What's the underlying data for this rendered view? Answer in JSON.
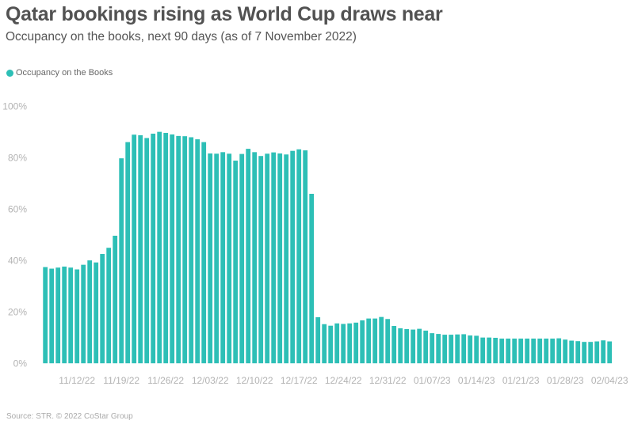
{
  "title": "Qatar bookings rising as World Cup draws near",
  "subtitle": "Occupancy on the books, next 90 days (as of 7 November 2022)",
  "source": "Source: STR. © 2022 CoStar Group",
  "colors": {
    "bar": "#2dbfb6",
    "text": "#525252",
    "axis_text": "#b3b3b3"
  },
  "chart_data": {
    "type": "bar",
    "title": "Qatar bookings rising as World Cup draws near",
    "subtitle": "Occupancy on the books, next 90 days (as of 7 November 2022)",
    "xlabel": "",
    "ylabel": "",
    "ylim": [
      0,
      100
    ],
    "grid": false,
    "legend_position": "top-left",
    "y_ticks": [
      {
        "value": 0,
        "label": "0%"
      },
      {
        "value": 20,
        "label": "20%"
      },
      {
        "value": 40,
        "label": "40%"
      },
      {
        "value": 60,
        "label": "60%"
      },
      {
        "value": 80,
        "label": "80%"
      },
      {
        "value": 100,
        "label": "100%"
      }
    ],
    "x_ticks": [
      {
        "index": 5,
        "label": "11/12/22"
      },
      {
        "index": 12,
        "label": "11/19/22"
      },
      {
        "index": 19,
        "label": "11/26/22"
      },
      {
        "index": 26,
        "label": "12/03/22"
      },
      {
        "index": 33,
        "label": "12/10/22"
      },
      {
        "index": 40,
        "label": "12/17/22"
      },
      {
        "index": 47,
        "label": "12/24/22"
      },
      {
        "index": 54,
        "label": "12/31/22"
      },
      {
        "index": 61,
        "label": "01/07/23"
      },
      {
        "index": 68,
        "label": "01/14/23"
      },
      {
        "index": 75,
        "label": "01/21/23"
      },
      {
        "index": 82,
        "label": "01/28/23"
      },
      {
        "index": 89,
        "label": "02/04/23"
      }
    ],
    "series": [
      {
        "name": "Occupancy on the Books",
        "values": [
          37.6,
          37.0,
          37.4,
          37.8,
          37.4,
          36.7,
          38.5,
          40.2,
          39.4,
          42.7,
          45.1,
          49.8,
          79.9,
          86.2,
          89.1,
          88.9,
          87.8,
          89.5,
          90.2,
          89.8,
          89.2,
          88.6,
          88.5,
          88.1,
          87.3,
          86.2,
          81.8,
          81.7,
          82.3,
          81.7,
          79.0,
          81.6,
          83.6,
          82.3,
          80.8,
          81.7,
          82.2,
          81.8,
          81.4,
          82.8,
          83.4,
          83.0,
          66.1,
          18.1,
          15.4,
          14.8,
          15.7,
          15.5,
          15.7,
          16.0,
          16.9,
          17.6,
          17.6,
          18.2,
          17.4,
          14.7,
          13.8,
          13.5,
          13.3,
          13.6,
          12.9,
          11.9,
          11.6,
          11.3,
          11.3,
          11.4,
          11.5,
          11.0,
          10.9,
          10.2,
          10.2,
          10.1,
          9.8,
          9.8,
          9.8,
          9.8,
          9.8,
          9.8,
          9.8,
          9.8,
          9.8,
          9.9,
          9.4,
          9.0,
          8.8,
          8.5,
          8.5,
          8.7,
          9.1,
          8.7
        ]
      }
    ]
  }
}
